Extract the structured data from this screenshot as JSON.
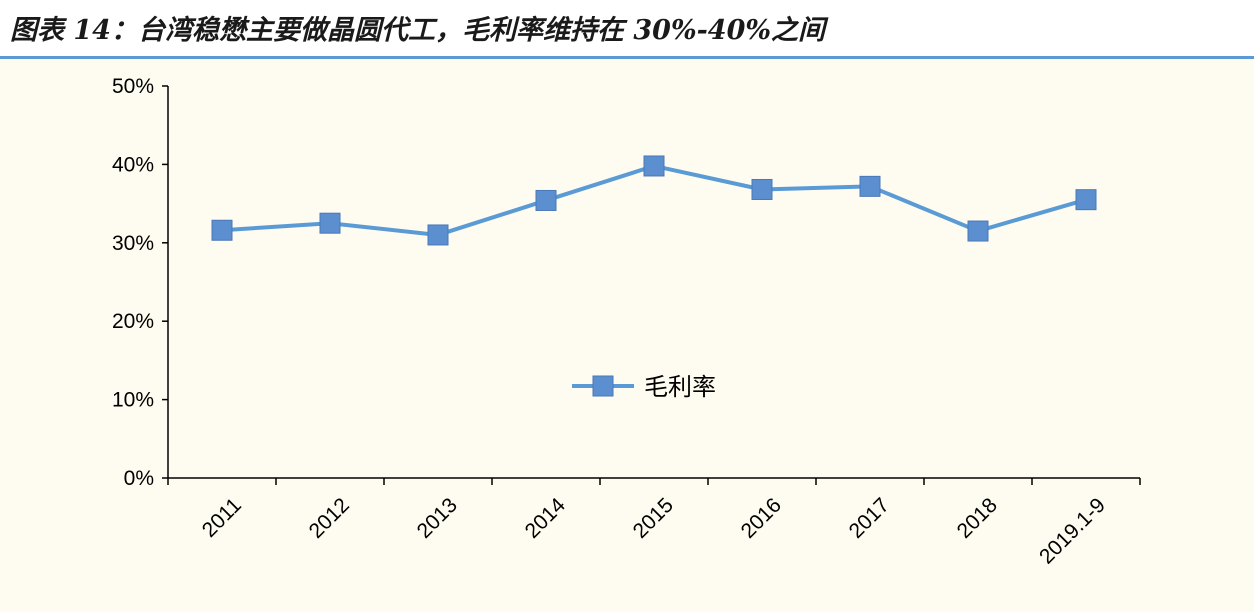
{
  "figure": {
    "title": "图表 14：台湾稳懋主要做晶圆代工，毛利率维持在 30%-40%之间"
  },
  "colors": {
    "line": "#5b9bd5",
    "marker": "#5b8fd0",
    "marker_edge": "#4a78b8",
    "rule": "#5b9bd5",
    "background": "#fefcf0"
  },
  "chart_data": {
    "type": "line",
    "categories": [
      "2011",
      "2012",
      "2013",
      "2014",
      "2015",
      "2016",
      "2017",
      "2018",
      "2019.1-9"
    ],
    "series": [
      {
        "name": "毛利率",
        "values": [
          31.6,
          32.5,
          31.0,
          35.4,
          39.8,
          36.8,
          37.2,
          31.5,
          35.5
        ]
      }
    ],
    "y_unit": "%",
    "ylim": [
      0,
      50
    ],
    "yticks": [
      "0%",
      "10%",
      "20%",
      "30%",
      "40%",
      "50%"
    ],
    "ytick_values": [
      0,
      10,
      20,
      30,
      40,
      50
    ],
    "grid": false,
    "legend": "center"
  }
}
